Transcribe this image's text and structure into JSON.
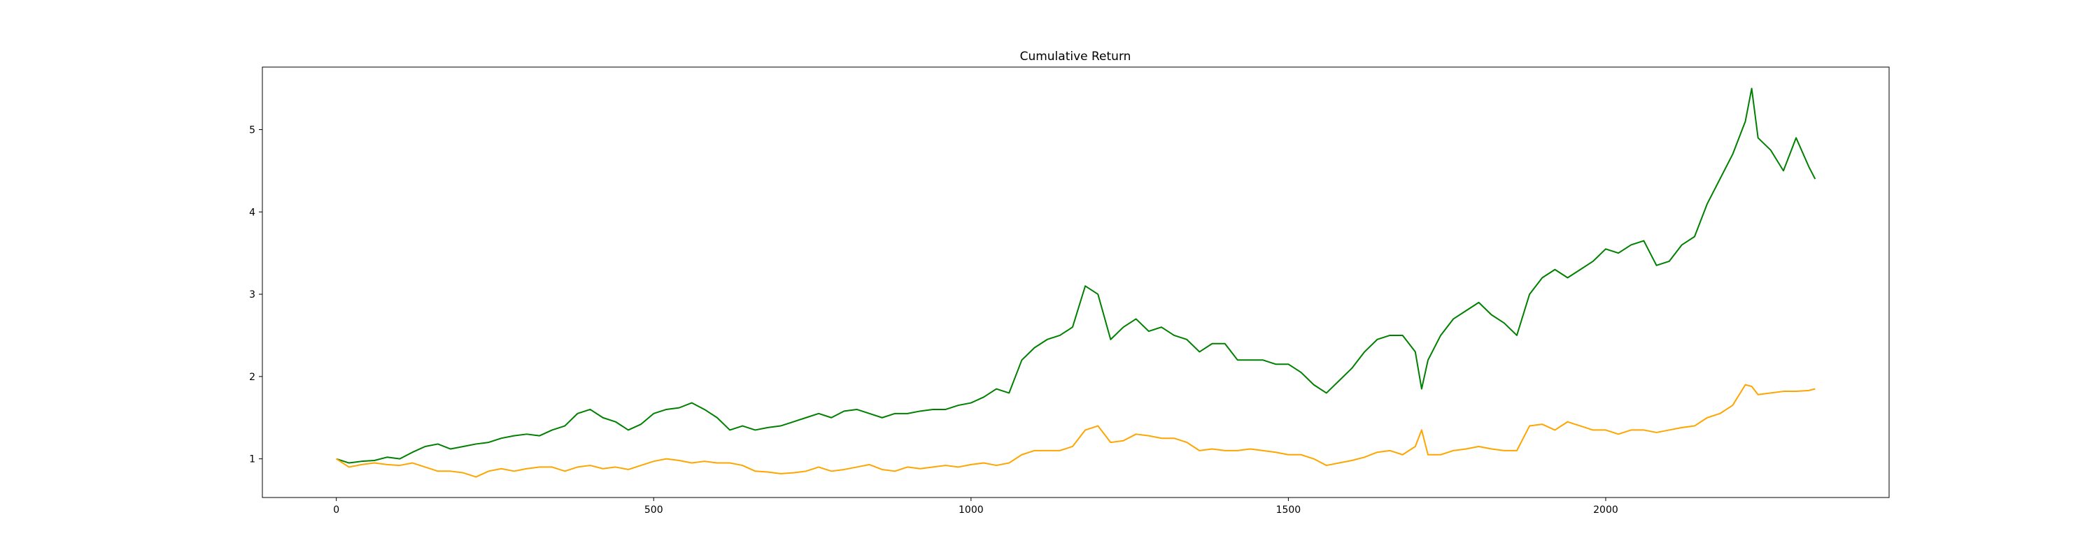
{
  "chart_data": {
    "type": "line",
    "title": "Cumulative Return",
    "x": [
      0,
      20,
      40,
      60,
      80,
      100,
      120,
      140,
      160,
      180,
      200,
      220,
      240,
      260,
      280,
      300,
      320,
      340,
      360,
      380,
      400,
      420,
      440,
      460,
      480,
      500,
      520,
      540,
      560,
      580,
      600,
      620,
      640,
      660,
      680,
      700,
      720,
      740,
      760,
      780,
      800,
      820,
      840,
      860,
      880,
      900,
      920,
      940,
      960,
      980,
      1000,
      1020,
      1040,
      1060,
      1080,
      1100,
      1120,
      1140,
      1160,
      1180,
      1200,
      1220,
      1240,
      1260,
      1280,
      1300,
      1320,
      1340,
      1360,
      1380,
      1400,
      1420,
      1440,
      1460,
      1480,
      1500,
      1520,
      1540,
      1560,
      1580,
      1600,
      1620,
      1640,
      1660,
      1680,
      1700,
      1710,
      1720,
      1740,
      1760,
      1780,
      1800,
      1820,
      1840,
      1860,
      1880,
      1900,
      1920,
      1940,
      1960,
      1980,
      2000,
      2020,
      2040,
      2060,
      2080,
      2100,
      2120,
      2140,
      2160,
      2180,
      2200,
      2220,
      2230,
      2240,
      2260,
      2280,
      2300,
      2320,
      2330
    ],
    "series": [
      {
        "color": "#008000",
        "values": [
          1.0,
          0.95,
          0.97,
          0.98,
          1.02,
          1.0,
          1.08,
          1.15,
          1.18,
          1.12,
          1.15,
          1.18,
          1.2,
          1.25,
          1.28,
          1.3,
          1.28,
          1.35,
          1.4,
          1.55,
          1.6,
          1.5,
          1.45,
          1.35,
          1.42,
          1.55,
          1.6,
          1.62,
          1.68,
          1.6,
          1.5,
          1.35,
          1.4,
          1.35,
          1.38,
          1.4,
          1.45,
          1.5,
          1.55,
          1.5,
          1.58,
          1.6,
          1.55,
          1.5,
          1.55,
          1.55,
          1.58,
          1.6,
          1.6,
          1.65,
          1.68,
          1.75,
          1.85,
          1.8,
          2.2,
          2.35,
          2.45,
          2.5,
          2.6,
          3.1,
          3.0,
          2.45,
          2.6,
          2.7,
          2.55,
          2.6,
          2.5,
          2.45,
          2.3,
          2.4,
          2.4,
          2.2,
          2.2,
          2.2,
          2.15,
          2.15,
          2.05,
          1.9,
          1.8,
          1.95,
          2.1,
          2.3,
          2.45,
          2.5,
          2.5,
          2.3,
          1.85,
          2.2,
          2.5,
          2.7,
          2.8,
          2.9,
          2.75,
          2.65,
          2.5,
          3.0,
          3.2,
          3.3,
          3.2,
          3.3,
          3.4,
          3.55,
          3.5,
          3.6,
          3.65,
          3.35,
          3.4,
          3.6,
          3.7,
          4.1,
          4.4,
          4.7,
          5.1,
          5.5,
          4.9,
          4.75,
          4.5,
          4.9,
          4.55,
          4.4
        ]
      },
      {
        "color": "#ffa500",
        "values": [
          1.0,
          0.9,
          0.93,
          0.95,
          0.93,
          0.92,
          0.95,
          0.9,
          0.85,
          0.85,
          0.83,
          0.78,
          0.85,
          0.88,
          0.85,
          0.88,
          0.9,
          0.9,
          0.85,
          0.9,
          0.92,
          0.88,
          0.9,
          0.87,
          0.92,
          0.97,
          1.0,
          0.98,
          0.95,
          0.97,
          0.95,
          0.95,
          0.92,
          0.85,
          0.84,
          0.82,
          0.83,
          0.85,
          0.9,
          0.85,
          0.87,
          0.9,
          0.93,
          0.87,
          0.85,
          0.9,
          0.88,
          0.9,
          0.92,
          0.9,
          0.93,
          0.95,
          0.92,
          0.95,
          1.05,
          1.1,
          1.1,
          1.1,
          1.15,
          1.35,
          1.4,
          1.2,
          1.22,
          1.3,
          1.28,
          1.25,
          1.25,
          1.2,
          1.1,
          1.12,
          1.1,
          1.1,
          1.12,
          1.1,
          1.08,
          1.05,
          1.05,
          1.0,
          0.92,
          0.95,
          0.98,
          1.02,
          1.08,
          1.1,
          1.05,
          1.15,
          1.35,
          1.05,
          1.05,
          1.1,
          1.12,
          1.15,
          1.12,
          1.1,
          1.1,
          1.4,
          1.42,
          1.35,
          1.45,
          1.4,
          1.35,
          1.35,
          1.3,
          1.35,
          1.35,
          1.32,
          1.35,
          1.38,
          1.4,
          1.5,
          1.55,
          1.65,
          1.9,
          1.88,
          1.78,
          1.8,
          1.82,
          1.82,
          1.83,
          1.85
        ]
      }
    ],
    "xlim": [
      -116.5,
      2446.5
    ],
    "ylim": [
      0.53,
      5.76
    ],
    "xticks": [
      0,
      500,
      1000,
      1500,
      2000
    ],
    "yticks": [
      1,
      2,
      3,
      4,
      5
    ]
  }
}
